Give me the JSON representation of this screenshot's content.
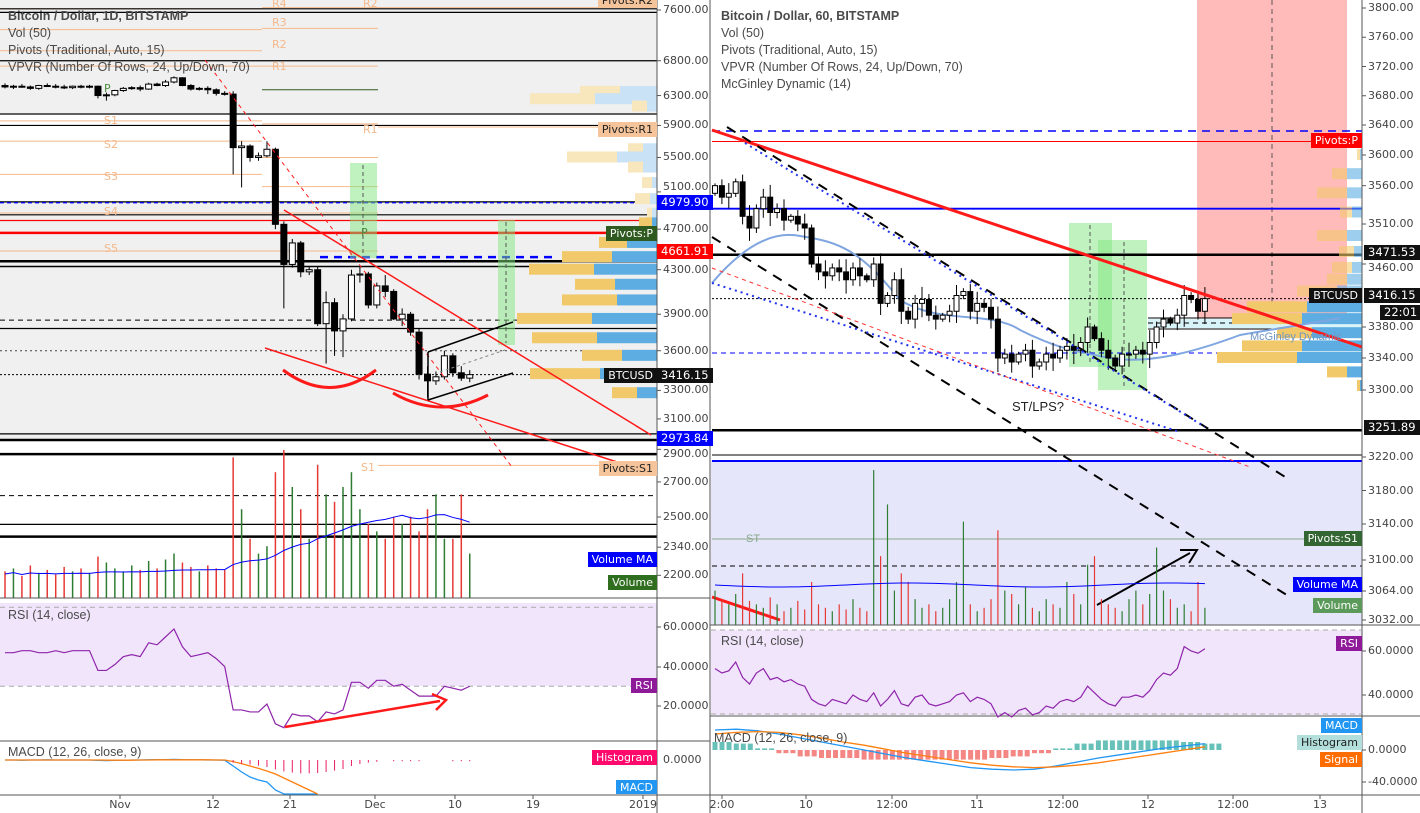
{
  "colors": {
    "up_vol": "#2e7d32",
    "down_vol": "#e53935",
    "vp_up": "#f1c96b",
    "vp_down": "#5dade2",
    "vp_up_pale": "#f8e6bd",
    "vp_down_pale": "#c9e2f6",
    "pivot": "#f5b88a",
    "trend": "#ff1a1a",
    "rsi": "#8e24aa",
    "rsi_band": "#f1e5fc",
    "vol_band": "#e6e6fb",
    "macd": "#2196f3",
    "signal": "#ff7f0e",
    "hist_neg": "#e91e63"
  },
  "left": {
    "legend": [
      "Bitcoin / Dollar, 1D, BITSTAMP",
      "Vol (50)",
      "Pivots (Traditional, Auto, 15)",
      "VPVR (Number Of Rows, 24, Up/Down, 70)"
    ],
    "price_ticks": [
      "7600.00",
      "6800.00",
      "6300.00",
      "5900.00",
      "5500.00",
      "5100.00",
      "4700.00",
      "4300.00",
      "3900.00",
      "3600.00",
      "3300.00",
      "3100.00",
      "2900.00",
      "2700.00",
      "2500.00",
      "2340.00",
      "2200.00"
    ],
    "rsi_ticks": [
      "60.0000",
      "40.0000",
      "20.0000"
    ],
    "macd_ticks": [
      "0.0000"
    ],
    "date_ticks": [
      "Nov",
      "12",
      "21",
      "Dec",
      "10",
      "19",
      "2019"
    ],
    "pivot_labels": {
      "left": [
        "R4",
        "R3",
        "R2",
        "R1",
        "P",
        "S1",
        "S2",
        "S3",
        "S4",
        "S5"
      ],
      "right": [
        "R2",
        "R1",
        "P",
        "S1"
      ]
    },
    "badges": {
      "r2": "Pivots:R2",
      "r1": "Pivots:R1",
      "level_blue": "4979.90",
      "p": "Pivots:P",
      "level_red": "4661.91",
      "symbol": "BTCUSD",
      "last": "3416.15",
      "level_low": "2973.84",
      "s1": "Pivots:S1",
      "vol_ma": "Volume MA",
      "vol": "Volume",
      "rsi": "RSI",
      "hist": "Histogram",
      "macd": "MACD"
    },
    "rsi_title": "RSI (14, close)",
    "macd_title": "MACD (12, 26, close, 9)",
    "candles": [
      [
        6440,
        6470,
        6400,
        6420
      ],
      [
        6420,
        6450,
        6390,
        6430
      ],
      [
        6430,
        6460,
        6410,
        6420
      ],
      [
        6420,
        6440,
        6380,
        6400
      ],
      [
        6400,
        6450,
        6380,
        6440
      ],
      [
        6440,
        6470,
        6420,
        6430
      ],
      [
        6430,
        6460,
        6400,
        6420
      ],
      [
        6420,
        6450,
        6390,
        6410
      ],
      [
        6410,
        6440,
        6390,
        6430
      ],
      [
        6430,
        6450,
        6400,
        6420
      ],
      [
        6420,
        6450,
        6400,
        6430
      ],
      [
        6430,
        6440,
        6260,
        6300
      ],
      [
        6300,
        6340,
        6230,
        6310
      ],
      [
        6310,
        6380,
        6290,
        6370
      ],
      [
        6370,
        6420,
        6350,
        6400
      ],
      [
        6400,
        6430,
        6380,
        6410
      ],
      [
        6410,
        6440,
        6360,
        6390
      ],
      [
        6390,
        6480,
        6380,
        6460
      ],
      [
        6460,
        6480,
        6430,
        6440
      ],
      [
        6440,
        6520,
        6420,
        6490
      ],
      [
        6490,
        6570,
        6470,
        6550
      ],
      [
        6550,
        6560,
        6430,
        6440
      ],
      [
        6440,
        6460,
        6370,
        6390
      ],
      [
        6390,
        6420,
        6370,
        6400
      ],
      [
        6400,
        6430,
        6320,
        6380
      ],
      [
        6380,
        6400,
        6300,
        6330
      ],
      [
        6330,
        6360,
        6300,
        6320
      ],
      [
        6320,
        6360,
        5300,
        5620
      ],
      [
        5620,
        5700,
        5150,
        5640
      ],
      [
        5640,
        5660,
        5450,
        5500
      ],
      [
        5500,
        5560,
        5460,
        5520
      ],
      [
        5520,
        5700,
        5500,
        5600
      ],
      [
        5600,
        5620,
        4700,
        4750
      ],
      [
        4750,
        4780,
        3950,
        4350
      ],
      [
        4350,
        4600,
        4320,
        4560
      ],
      [
        4560,
        4580,
        4230,
        4280
      ],
      [
        4280,
        4330,
        4250,
        4300
      ],
      [
        4300,
        4330,
        3800,
        3820
      ],
      [
        3820,
        4100,
        3500,
        4000
      ],
      [
        4000,
        4040,
        3560,
        3760
      ],
      [
        3760,
        3900,
        3550,
        3860
      ],
      [
        3860,
        4300,
        3840,
        4250
      ],
      [
        4250,
        4330,
        4180,
        4260
      ],
      [
        4260,
        4280,
        3950,
        3980
      ],
      [
        3980,
        4180,
        3950,
        4150
      ],
      [
        4150,
        4250,
        4050,
        4100
      ],
      [
        4100,
        4120,
        3850,
        3860
      ],
      [
        3860,
        3950,
        3800,
        3900
      ],
      [
        3900,
        3920,
        3720,
        3750
      ],
      [
        3750,
        3780,
        3380,
        3420
      ],
      [
        3420,
        3480,
        3250,
        3370
      ],
      [
        3370,
        3440,
        3340,
        3400
      ],
      [
        3400,
        3600,
        3380,
        3560
      ],
      [
        3560,
        3580,
        3400,
        3430
      ],
      [
        3430,
        3480,
        3370,
        3390
      ],
      [
        3390,
        3450,
        3360,
        3416
      ]
    ],
    "volume": [
      18,
      20,
      15,
      22,
      17,
      19,
      16,
      21,
      18,
      20,
      17,
      28,
      24,
      20,
      18,
      22,
      19,
      25,
      20,
      26,
      30,
      24,
      21,
      18,
      22,
      20,
      19,
      95,
      60,
      40,
      30,
      35,
      85,
      100,
      75,
      60,
      40,
      90,
      70,
      65,
      75,
      85,
      60,
      50,
      45,
      40,
      55,
      50,
      55,
      45,
      60,
      70,
      40,
      40,
      70,
      30
    ],
    "rsi": [
      47,
      47,
      48,
      48,
      47,
      47,
      48,
      47,
      48,
      48,
      48,
      38,
      38,
      41,
      45,
      46,
      45,
      52,
      51,
      55,
      59,
      50,
      45,
      46,
      47,
      44,
      40,
      18,
      18,
      17,
      17,
      21,
      11,
      9,
      16,
      15,
      15,
      12,
      17,
      16,
      18,
      32,
      32,
      29,
      33,
      33,
      30,
      31,
      28,
      25,
      25,
      25,
      30,
      29,
      28,
      30
    ],
    "macd": [
      0,
      0,
      -1,
      0,
      0,
      1,
      0,
      0,
      0,
      0,
      0,
      -2,
      -3,
      -2,
      -1,
      0,
      0,
      1,
      2,
      2,
      3,
      2,
      1,
      1,
      0,
      0,
      -1,
      -30,
      -60,
      -85,
      -100,
      -110,
      -150,
      -200,
      -230,
      -250,
      -270,
      -300
    ],
    "signal": [
      0,
      0,
      0,
      0,
      0,
      0,
      0,
      0,
      0,
      0,
      0,
      0,
      -1,
      -1,
      -1,
      -1,
      0,
      0,
      1,
      1,
      1,
      1,
      1,
      1,
      1,
      0,
      0,
      -8,
      -18,
      -30,
      -42,
      -55,
      -70,
      -90,
      -110,
      -130,
      -150,
      -170
    ],
    "histogram": [
      0,
      0,
      0,
      0,
      0,
      0,
      0,
      0,
      0,
      0,
      0,
      0,
      0,
      0,
      0,
      0,
      0,
      0,
      0,
      0,
      0,
      0,
      0,
      0,
      0,
      0,
      0,
      -8,
      -14,
      -18,
      -24,
      -30,
      -42,
      -52,
      -58,
      -62,
      -62,
      -60,
      -55,
      -48,
      -40,
      -25,
      -15,
      -8,
      -4,
      0,
      -1,
      -1,
      -1,
      -1,
      0,
      0,
      0,
      -1,
      -1,
      -1
    ],
    "vpvr": [
      [
        6350,
        40,
        37,
        1
      ],
      [
        6250,
        65,
        62,
        1
      ],
      [
        6150,
        15,
        10,
        1
      ],
      [
        5600,
        15,
        14,
        1
      ],
      [
        5500,
        50,
        40,
        1
      ],
      [
        5380,
        15,
        14,
        1
      ],
      [
        5200,
        10,
        5,
        1
      ],
      [
        5020,
        15,
        7,
        1
      ],
      [
        4860,
        5,
        5,
        1
      ],
      [
        4760,
        13,
        5,
        0
      ],
      [
        4560,
        28,
        30,
        0
      ],
      [
        4420,
        50,
        45,
        0
      ],
      [
        4300,
        65,
        63,
        0
      ],
      [
        4160,
        40,
        42,
        0
      ],
      [
        4020,
        55,
        40,
        0
      ],
      [
        3860,
        75,
        65,
        0
      ],
      [
        3700,
        65,
        60,
        0
      ],
      [
        3560,
        40,
        35,
        0
      ],
      [
        3420,
        70,
        57,
        0
      ],
      [
        3280,
        25,
        20,
        0
      ]
    ],
    "text": {}
  },
  "right": {
    "legend": [
      "Bitcoin / Dollar, 60, BITSTAMP",
      "Vol (50)",
      "Pivots (Traditional, Auto, 15)",
      "VPVR (Number Of Rows, 24, Up/Down, 70)",
      "McGinley Dynamic (14)"
    ],
    "price_ticks": [
      "3800.00",
      "3760.00",
      "3720.00",
      "3680.00",
      "3640.00",
      "3600.00",
      "3560.00",
      "3510.00",
      "3460.00",
      "3380.00",
      "3340.00",
      "3300.00",
      "3220.00",
      "3180.00",
      "3140.00",
      "3100.00",
      "3064.00",
      "3032.00"
    ],
    "rsi_ticks": [
      "60.0000",
      "40.0000"
    ],
    "macd_ticks": [
      "0.0000",
      "-40.0000"
    ],
    "date_ticks": [
      "2:00",
      "10",
      "12:00",
      "11",
      "12:00",
      "12",
      "12:00",
      "13"
    ],
    "badges": {
      "p": "Pivots:P",
      "level_black": "3471.53",
      "symbol": "BTCUSD",
      "last": "3416.15",
      "countdown": "22:01",
      "level_low": "3251.89",
      "s1": "Pivots:S1",
      "vol_ma": "Volume MA",
      "vol": "Volume",
      "rsi": "RSI",
      "macd": "MACD",
      "hist": "Histogram",
      "signal": "Signal"
    },
    "rsi_title": "RSI (14, close)",
    "macd_title": "MACD (12, 26, close, 9)",
    "annotations": {
      "st_lps": "ST/LPS?",
      "st": "ST",
      "mcginley_tag": "McGinley Dynamic"
    },
    "first_open": 3550,
    "closes": [
      3560,
      3545,
      3550,
      3565,
      3520,
      3505,
      3530,
      3545,
      3525,
      3530,
      3515,
      3520,
      3510,
      3505,
      3460,
      3450,
      3445,
      3455,
      3450,
      3440,
      3455,
      3445,
      3440,
      3460,
      3410,
      3420,
      3440,
      3400,
      3390,
      3410,
      3415,
      3395,
      3390,
      3395,
      3400,
      3420,
      3425,
      3400,
      3410,
      3405,
      3390,
      3340,
      3345,
      3335,
      3345,
      3350,
      3330,
      3335,
      3345,
      3340,
      3350,
      3355,
      3350,
      3360,
      3380,
      3365,
      3350,
      3340,
      3330,
      3345,
      3345,
      3350,
      3345,
      3360,
      3380,
      3390,
      3385,
      3395,
      3420,
      3415,
      3400,
      3416
    ],
    "volume": [
      20,
      15,
      12,
      18,
      30,
      14,
      12,
      10,
      16,
      12,
      8,
      10,
      14,
      9,
      25,
      12,
      10,
      8,
      12,
      9,
      15,
      10,
      8,
      90,
      40,
      70,
      20,
      30,
      25,
      15,
      10,
      12,
      8,
      10,
      15,
      25,
      60,
      12,
      8,
      10,
      15,
      55,
      20,
      18,
      12,
      22,
      10,
      8,
      15,
      12,
      10,
      25,
      18,
      12,
      35,
      40,
      15,
      12,
      10,
      8,
      15,
      20,
      12,
      18,
      45,
      20,
      15,
      10,
      12,
      8,
      25,
      10
    ],
    "rsi": [
      52,
      50,
      51,
      55,
      48,
      45,
      50,
      52,
      47,
      48,
      46,
      47,
      45,
      44,
      38,
      36,
      35,
      38,
      37,
      36,
      40,
      38,
      37,
      41,
      35,
      38,
      42,
      36,
      35,
      39,
      40,
      36,
      35,
      36,
      37,
      40,
      41,
      37,
      39,
      38,
      36,
      30,
      32,
      30,
      33,
      34,
      31,
      32,
      35,
      34,
      37,
      38,
      37,
      39,
      44,
      41,
      38,
      36,
      35,
      39,
      39,
      40,
      39,
      42,
      47,
      50,
      49,
      52,
      62,
      60,
      59,
      61
    ],
    "macd": [
      25,
      26,
      24,
      20,
      15,
      10,
      5,
      0,
      -5,
      -10,
      -14,
      -18,
      -22,
      -24,
      -25,
      -24,
      -20,
      -15,
      -10,
      -6,
      -2,
      2,
      5,
      8
    ],
    "signal": [
      20,
      22,
      23,
      22,
      19,
      15,
      10,
      6,
      1,
      -4,
      -8,
      -12,
      -16,
      -19,
      -21,
      -22,
      -21,
      -19,
      -16,
      -12,
      -8,
      -4,
      0,
      4
    ],
    "vpvr": [
      [
        3600,
        3,
        2
      ],
      [
        3575,
        15,
        15
      ],
      [
        3550,
        30,
        15
      ],
      [
        3525,
        12,
        10
      ],
      [
        3495,
        30,
        15
      ],
      [
        3475,
        15,
        8
      ],
      [
        3455,
        20,
        10
      ],
      [
        3440,
        20,
        15
      ],
      [
        3425,
        40,
        25
      ],
      [
        3405,
        60,
        55
      ],
      [
        3390,
        70,
        60
      ],
      [
        3372,
        35,
        50
      ],
      [
        3355,
        60,
        60
      ],
      [
        3340,
        80,
        65
      ],
      [
        3322,
        20,
        15
      ],
      [
        3305,
        3,
        2
      ]
    ]
  }
}
